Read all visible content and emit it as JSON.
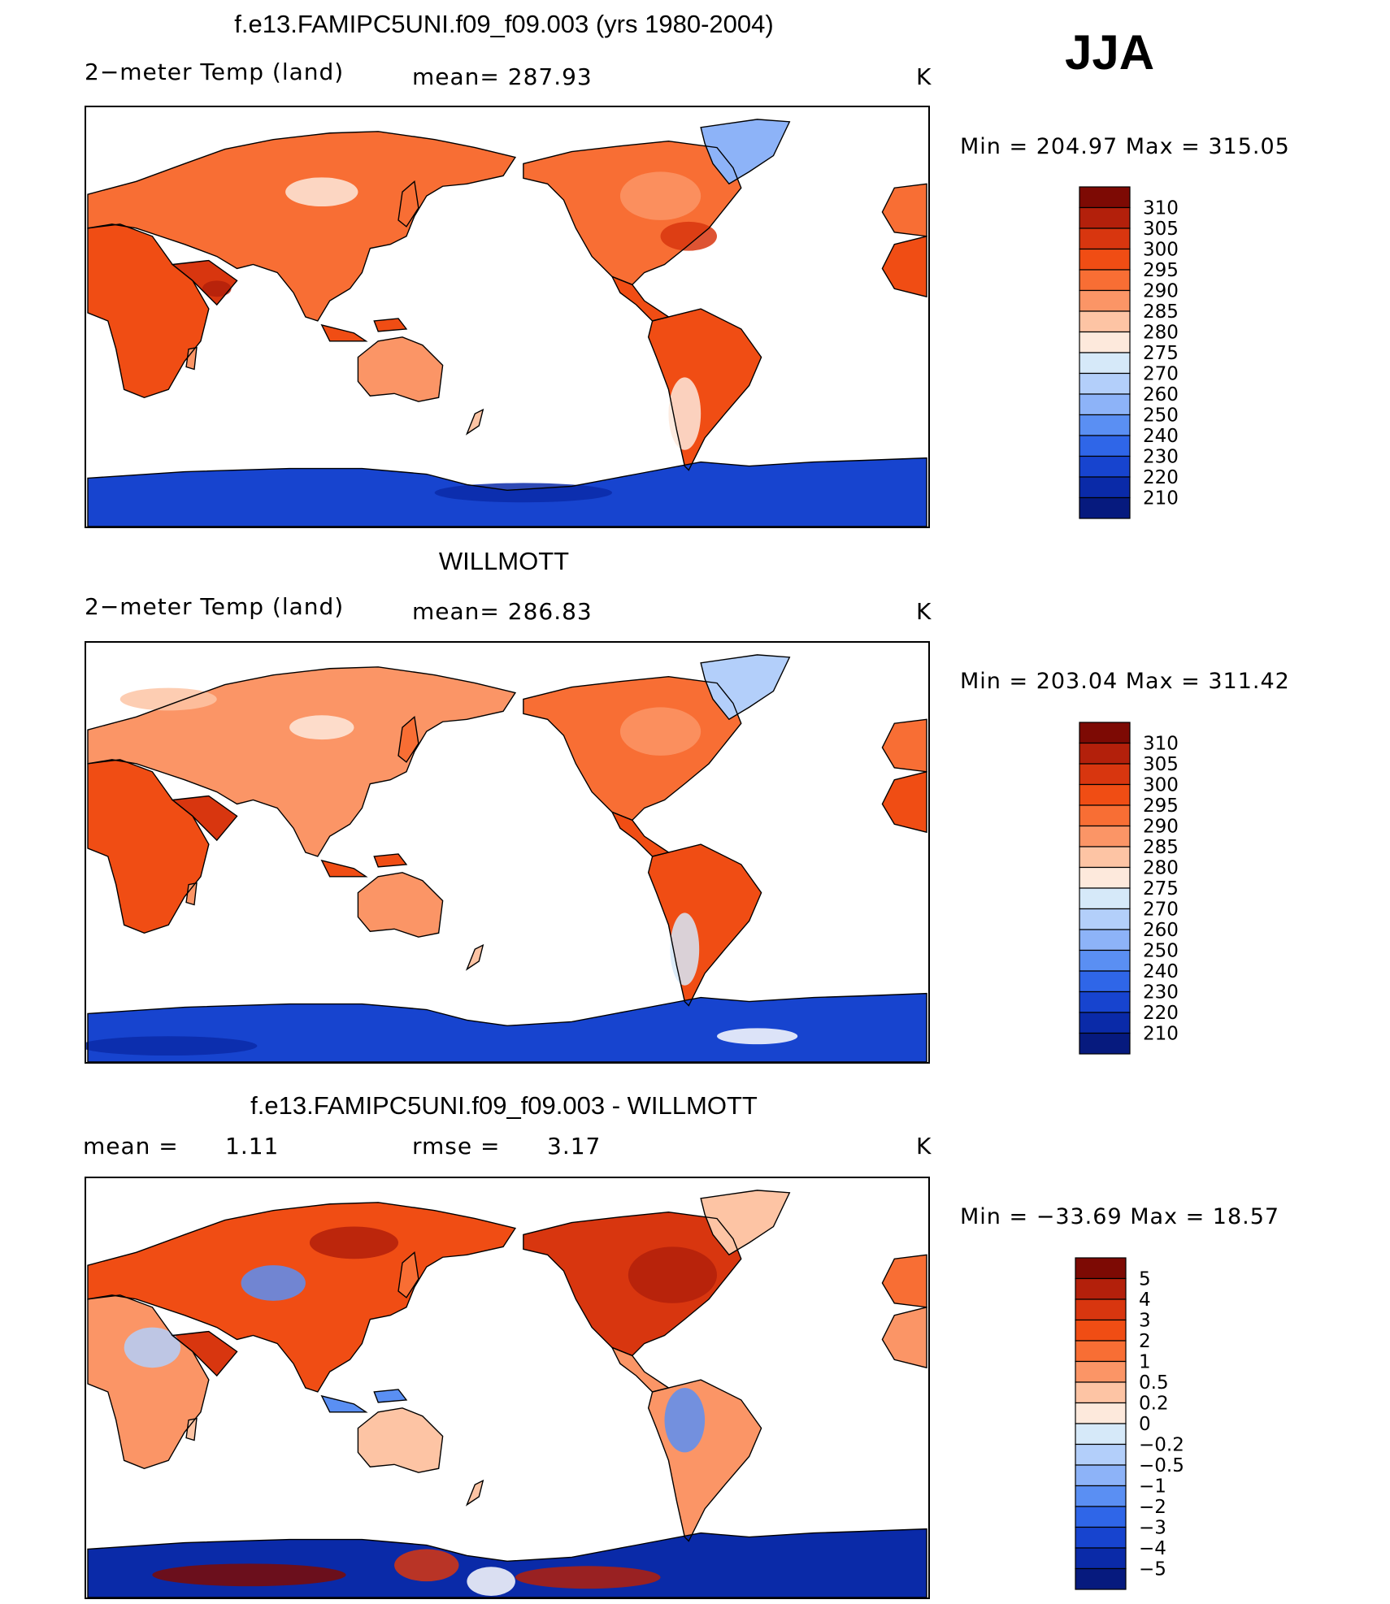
{
  "season": "JJA",
  "chart_data": [
    {
      "type": "heatmap",
      "title": "f.e13.FAMIPC5UNI.f09_f09.003 (yrs 1980-2004)",
      "variable": "2−meter Temp (land)",
      "mean_text": "mean= 287.93",
      "units": "K",
      "min_max_text": "Min  =  204.97  Max  =  315.05",
      "min": 204.97,
      "max": 315.05,
      "colorbar": {
        "levels": [
          "310",
          "305",
          "300",
          "295",
          "290",
          "285",
          "280",
          "275",
          "270",
          "260",
          "250",
          "240",
          "230",
          "220",
          "210"
        ],
        "colors": [
          "#7d0a04",
          "#b3200b",
          "#d8360f",
          "#f04d14",
          "#f86e34",
          "#fb9566",
          "#fdc4a4",
          "#fde9dc",
          "#d6e9f9",
          "#b3cffa",
          "#8db3f8",
          "#5a8ff3",
          "#2f66e8",
          "#1744cf",
          "#0a2aa8",
          "#061a7e"
        ]
      }
    },
    {
      "type": "heatmap",
      "title": "WILLMOTT",
      "variable": "2−meter Temp (land)",
      "mean_text": "mean= 286.83",
      "units": "K",
      "min_max_text": "Min  =  203.04  Max  =  311.42",
      "min": 203.04,
      "max": 311.42,
      "colorbar": {
        "levels": [
          "310",
          "305",
          "300",
          "295",
          "290",
          "285",
          "280",
          "275",
          "270",
          "260",
          "250",
          "240",
          "230",
          "220",
          "210"
        ],
        "colors": [
          "#7d0a04",
          "#b3200b",
          "#d8360f",
          "#f04d14",
          "#f86e34",
          "#fb9566",
          "#fdc4a4",
          "#fde9dc",
          "#d6e9f9",
          "#b3cffa",
          "#8db3f8",
          "#5a8ff3",
          "#2f66e8",
          "#1744cf",
          "#0a2aa8",
          "#061a7e"
        ]
      }
    },
    {
      "type": "heatmap",
      "title": "f.e13.FAMIPC5UNI.f09_f09.003 - WILLMOTT",
      "mean_label": "mean  =",
      "mean_value": "1.11",
      "rmse_label": "rmse  =",
      "rmse_value": "3.17",
      "units": "K",
      "min_max_text": "Min  =  −33.69  Max  =    18.57",
      "min": -33.69,
      "max": 18.57,
      "colorbar": {
        "levels": [
          "5",
          "4",
          "3",
          "2",
          "1",
          "0.5",
          "0.2",
          "0",
          "−0.2",
          "−0.5",
          "−1",
          "−2",
          "−3",
          "−4",
          "−5"
        ],
        "colors": [
          "#7d0a04",
          "#b3200b",
          "#d8360f",
          "#f04d14",
          "#f86e34",
          "#fb9566",
          "#fdc4a4",
          "#fde9dc",
          "#d6e9f9",
          "#b3cffa",
          "#8db3f8",
          "#5a8ff3",
          "#2f66e8",
          "#1744cf",
          "#0a2aa8",
          "#061a7e"
        ]
      }
    }
  ]
}
